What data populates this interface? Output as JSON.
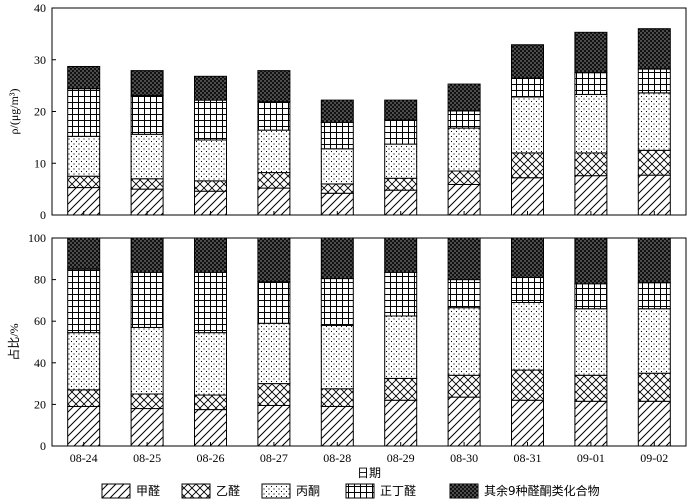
{
  "chart_data": [
    {
      "type": "bar",
      "stacked": true,
      "panel": "top",
      "ylabel": "ρ/(μg/m³)",
      "ylim": [
        0,
        40
      ],
      "yticks": [
        0,
        10,
        20,
        30,
        40
      ],
      "categories": [
        "08-24",
        "08-25",
        "08-26",
        "08-27",
        "08-28",
        "08-29",
        "08-30",
        "08-31",
        "09-01",
        "09-02"
      ],
      "series": [
        {
          "name": "甲醛",
          "pattern": "diag",
          "values": [
            5.3,
            5.0,
            4.6,
            5.2,
            4.2,
            4.8,
            5.9,
            7.2,
            7.6,
            7.7
          ]
        },
        {
          "name": "乙醛",
          "pattern": "cross",
          "values": [
            2.2,
            2.0,
            2.0,
            3.0,
            1.8,
            2.3,
            2.6,
            4.8,
            4.4,
            4.8
          ]
        },
        {
          "name": "丙酮",
          "pattern": "dots",
          "values": [
            7.7,
            8.6,
            7.9,
            8.2,
            6.8,
            6.6,
            8.3,
            10.8,
            11.3,
            11.1
          ]
        },
        {
          "name": "正丁醛",
          "pattern": "grid",
          "values": [
            9.2,
            7.5,
            7.7,
            5.5,
            5.1,
            4.7,
            3.3,
            3.7,
            4.2,
            4.6
          ]
        },
        {
          "name": "其余9种醛酮类化合物",
          "pattern": "dense",
          "values": [
            4.3,
            4.8,
            4.6,
            6.0,
            4.3,
            3.8,
            5.2,
            6.4,
            7.8,
            7.8
          ]
        }
      ]
    },
    {
      "type": "bar",
      "stacked": true,
      "panel": "bottom",
      "ylabel": "占比/%",
      "xlabel": "日期",
      "ylim": [
        0,
        100
      ],
      "yticks": [
        0,
        20,
        40,
        60,
        80,
        100
      ],
      "categories": [
        "08-24",
        "08-25",
        "08-26",
        "08-27",
        "08-28",
        "08-29",
        "08-30",
        "08-31",
        "09-01",
        "09-02"
      ],
      "series": [
        {
          "name": "甲醛",
          "pattern": "diag",
          "values": [
            19,
            18,
            17.5,
            19.5,
            19,
            22,
            23.5,
            22,
            21.5,
            21.5
          ]
        },
        {
          "name": "乙醛",
          "pattern": "cross",
          "values": [
            8,
            7,
            7,
            10.5,
            8.5,
            10.5,
            10.5,
            14.5,
            12.5,
            13.5
          ]
        },
        {
          "name": "丙酮",
          "pattern": "dots",
          "values": [
            27.5,
            32,
            30,
            29,
            30.5,
            30,
            32.5,
            32.5,
            32,
            31
          ]
        },
        {
          "name": "正丁醛",
          "pattern": "grid",
          "values": [
            30.5,
            26.5,
            29,
            20,
            22.5,
            21,
            13.5,
            12,
            12,
            12.5
          ]
        },
        {
          "name": "其余9种醛酮类化合物",
          "pattern": "dense",
          "values": [
            15,
            16.5,
            16.5,
            21,
            19.5,
            16.5,
            20,
            19,
            22,
            21.5
          ]
        }
      ]
    }
  ],
  "legend": [
    {
      "label": "甲醛",
      "pattern": "diag"
    },
    {
      "label": "乙醛",
      "pattern": "cross"
    },
    {
      "label": "丙酮",
      "pattern": "dots"
    },
    {
      "label": "正丁醛",
      "pattern": "grid"
    },
    {
      "label": "其余9种醛酮类化合物",
      "pattern": "dense"
    }
  ]
}
